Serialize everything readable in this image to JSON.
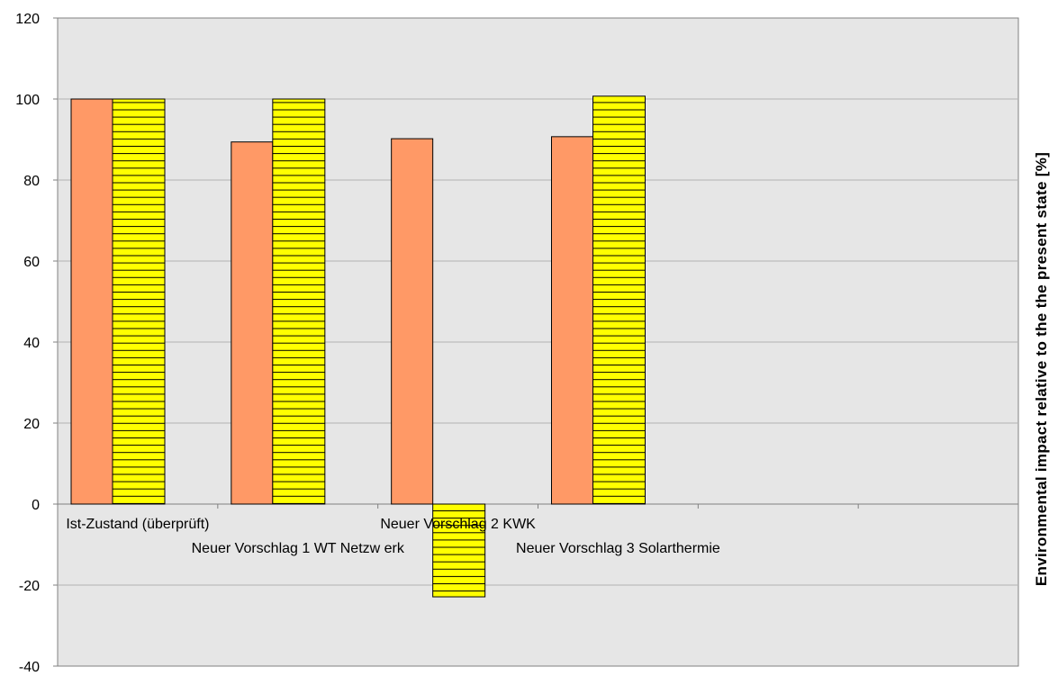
{
  "chart_data": {
    "type": "bar",
    "title": "",
    "xlabel": "",
    "ylabel": "Environmental impact relative to the the present state [%]",
    "ylim": [
      -40,
      120
    ],
    "yticks": [
      -40,
      -20,
      0,
      20,
      40,
      60,
      80,
      100,
      120
    ],
    "grid": true,
    "plot_background": "#e6e6e6",
    "categories": [
      "Ist-Zustand (überprüft)",
      "Neuer Vorschlag 1 WT Netzw erk",
      "Neuer Vorschlag 2 KWK",
      "Neuer Vorschlag 3 Solarthermie",
      "",
      ""
    ],
    "series": [
      {
        "color": "#ff9966",
        "pattern": "solid",
        "values": [
          100,
          89.4,
          90.2,
          90.7,
          null,
          null
        ]
      },
      {
        "color": "#ffff00",
        "pattern": "horizontal-lines",
        "values": [
          100,
          100,
          -22.9,
          100.7,
          null,
          null
        ]
      }
    ]
  }
}
